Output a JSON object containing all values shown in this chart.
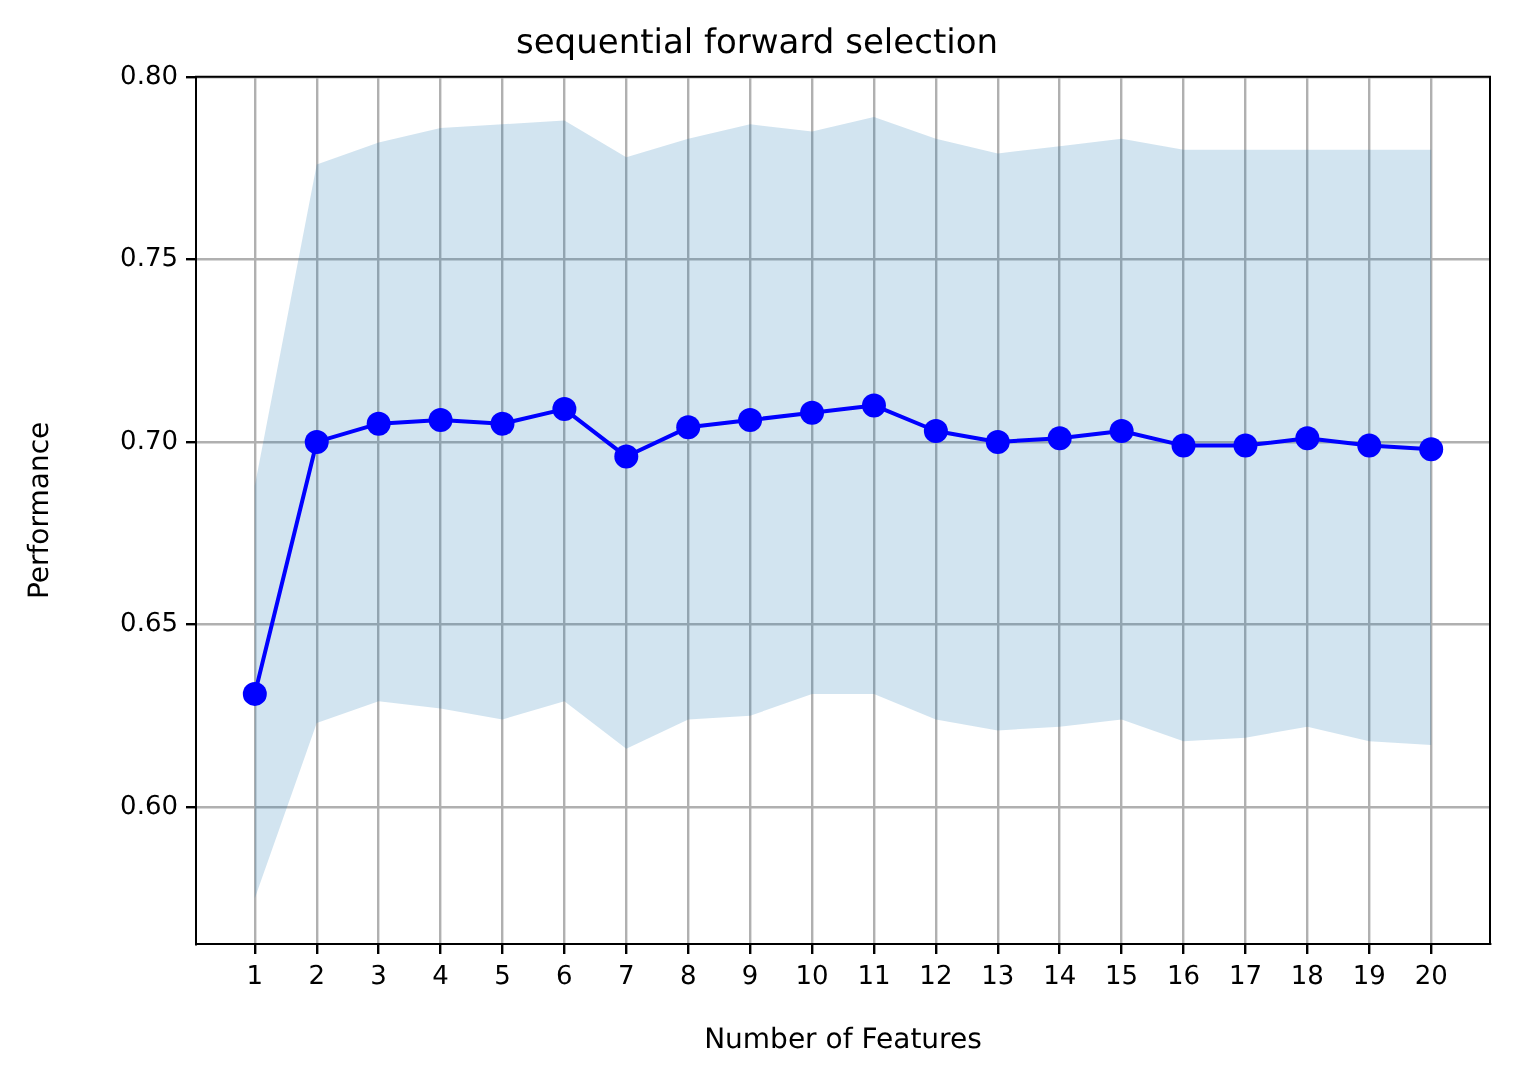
{
  "chart_data": {
    "type": "line",
    "title": "sequential forward selection",
    "xlabel": "Number of Features",
    "ylabel": "Performance",
    "x": [
      1,
      2,
      3,
      4,
      5,
      6,
      7,
      8,
      9,
      10,
      11,
      12,
      13,
      14,
      15,
      16,
      17,
      18,
      19,
      20
    ],
    "series": [
      {
        "color": "#0000ff",
        "values": [
          0.631,
          0.7,
          0.705,
          0.706,
          0.705,
          0.709,
          0.696,
          0.704,
          0.706,
          0.708,
          0.71,
          0.703,
          0.7,
          0.701,
          0.703,
          0.699,
          0.699,
          0.701,
          0.699,
          0.698
        ],
        "lower": [
          0.575,
          0.623,
          0.629,
          0.627,
          0.624,
          0.629,
          0.616,
          0.624,
          0.625,
          0.631,
          0.631,
          0.624,
          0.621,
          0.622,
          0.624,
          0.618,
          0.619,
          0.622,
          0.618,
          0.617
        ],
        "upper": [
          0.688,
          0.776,
          0.782,
          0.786,
          0.787,
          0.788,
          0.778,
          0.783,
          0.787,
          0.785,
          0.789,
          0.783,
          0.779,
          0.781,
          0.783,
          0.78,
          0.78,
          0.78,
          0.78,
          0.78
        ]
      }
    ],
    "xlim": [
      0.05,
      20.95
    ],
    "ylim": [
      0.5625,
      0.8
    ],
    "xticks": [
      1,
      2,
      3,
      4,
      5,
      6,
      7,
      8,
      9,
      10,
      11,
      12,
      13,
      14,
      15,
      16,
      17,
      18,
      19,
      20
    ],
    "yticks": [
      {
        "value": 0.6,
        "label": "0.60"
      },
      {
        "value": 0.65,
        "label": "0.65"
      },
      {
        "value": 0.7,
        "label": "0.70"
      },
      {
        "value": 0.75,
        "label": "0.75"
      },
      {
        "value": 0.8,
        "label": "0.80"
      }
    ],
    "grid": true,
    "marker": "circle",
    "line_style": "solid"
  }
}
